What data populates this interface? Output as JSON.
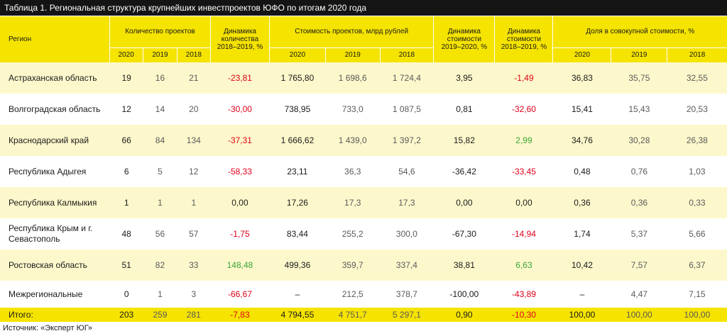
{
  "title": "Таблица 1. Региональная структура крупнейших инвестпроектов ЮФО по итогам 2020 года",
  "headers": {
    "region": "Регион",
    "count_group": "Количество проектов",
    "count_dyn": "Динамика количества 2018–2019, %",
    "cost_group": "Стоимость проектов, млрд рублей",
    "cost_dyn_1": "Динамика стоимости 2019–2020, %",
    "cost_dyn_2": "Динамика стоимости 2018–2019, %",
    "share_group": "Доля в совокупной стоимости, %",
    "years": [
      "2020",
      "2019",
      "2018"
    ]
  },
  "rows": [
    {
      "region": "Астраханская область",
      "c2020": "19",
      "c2019": "16",
      "c2018": "21",
      "cdyn": "-23,81",
      "s2020": "1 765,80",
      "s2019": "1 698,6",
      "s2018": "1 724,4",
      "sdyn1": "3,95",
      "sdyn2": "-1,49",
      "p2020": "36,83",
      "p2019": "35,75",
      "p2018": "32,55"
    },
    {
      "region": "Волгоградская область",
      "c2020": "12",
      "c2019": "14",
      "c2018": "20",
      "cdyn": "-30,00",
      "s2020": "738,95",
      "s2019": "733,0",
      "s2018": "1 087,5",
      "sdyn1": "0,81",
      "sdyn2": "-32,60",
      "p2020": "15,41",
      "p2019": "15,43",
      "p2018": "20,53"
    },
    {
      "region": "Краснодарский край",
      "c2020": "66",
      "c2019": "84",
      "c2018": "134",
      "cdyn": "-37,31",
      "s2020": "1 666,62",
      "s2019": "1 439,0",
      "s2018": "1 397,2",
      "sdyn1": "15,82",
      "sdyn2": "2,99",
      "p2020": "34,76",
      "p2019": "30,28",
      "p2018": "26,38"
    },
    {
      "region": "Республика Адыгея",
      "c2020": "6",
      "c2019": "5",
      "c2018": "12",
      "cdyn": "-58,33",
      "s2020": "23,11",
      "s2019": "36,3",
      "s2018": "54,6",
      "sdyn1": "-36,42",
      "sdyn2": "-33,45",
      "p2020": "0,48",
      "p2019": "0,76",
      "p2018": "1,03"
    },
    {
      "region": "Республика Калмыкия",
      "c2020": "1",
      "c2019": "1",
      "c2018": "1",
      "cdyn": "0,00",
      "s2020": "17,26",
      "s2019": "17,3",
      "s2018": "17,3",
      "sdyn1": "0,00",
      "sdyn2": "0,00",
      "p2020": "0,36",
      "p2019": "0,36",
      "p2018": "0,33"
    },
    {
      "region": "Республика Крым и г. Севастополь",
      "c2020": "48",
      "c2019": "56",
      "c2018": "57",
      "cdyn": "-1,75",
      "s2020": "83,44",
      "s2019": "255,2",
      "s2018": "300,0",
      "sdyn1": "-67,30",
      "sdyn2": "-14,94",
      "p2020": "1,74",
      "p2019": "5,37",
      "p2018": "5,66"
    },
    {
      "region": "Ростовская область",
      "c2020": "51",
      "c2019": "82",
      "c2018": "33",
      "cdyn": "148,48",
      "s2020": "499,36",
      "s2019": "359,7",
      "s2018": "337,4",
      "sdyn1": "38,81",
      "sdyn2": "6,63",
      "p2020": "10,42",
      "p2019": "7,57",
      "p2018": "6,37"
    },
    {
      "region": "Межрегиональные",
      "c2020": "0",
      "c2019": "1",
      "c2018": "3",
      "cdyn": "-66,67",
      "s2020": "–",
      "s2019": "212,5",
      "s2018": "378,7",
      "sdyn1": "-100,00",
      "sdyn2": "-43,89",
      "p2020": "–",
      "p2019": "4,47",
      "p2018": "7,15"
    }
  ],
  "total": {
    "region": "Итого:",
    "c2020": "203",
    "c2019": "259",
    "c2018": "281",
    "cdyn": "-7,83",
    "s2020": "4 794,55",
    "s2019": "4 751,7",
    "s2018": "5 297,1",
    "sdyn1": "0,90",
    "sdyn2": "-10,30",
    "p2020": "100,00",
    "p2019": "100,00",
    "p2018": "100,00"
  },
  "source": "Источник: «Эксперт ЮГ»",
  "colors": {
    "accent_yellow": "#f5e300",
    "row_tint": "#fdf8cc",
    "negative": "#e0001b",
    "positive": "#3aa536",
    "title_bg": "#141414"
  }
}
